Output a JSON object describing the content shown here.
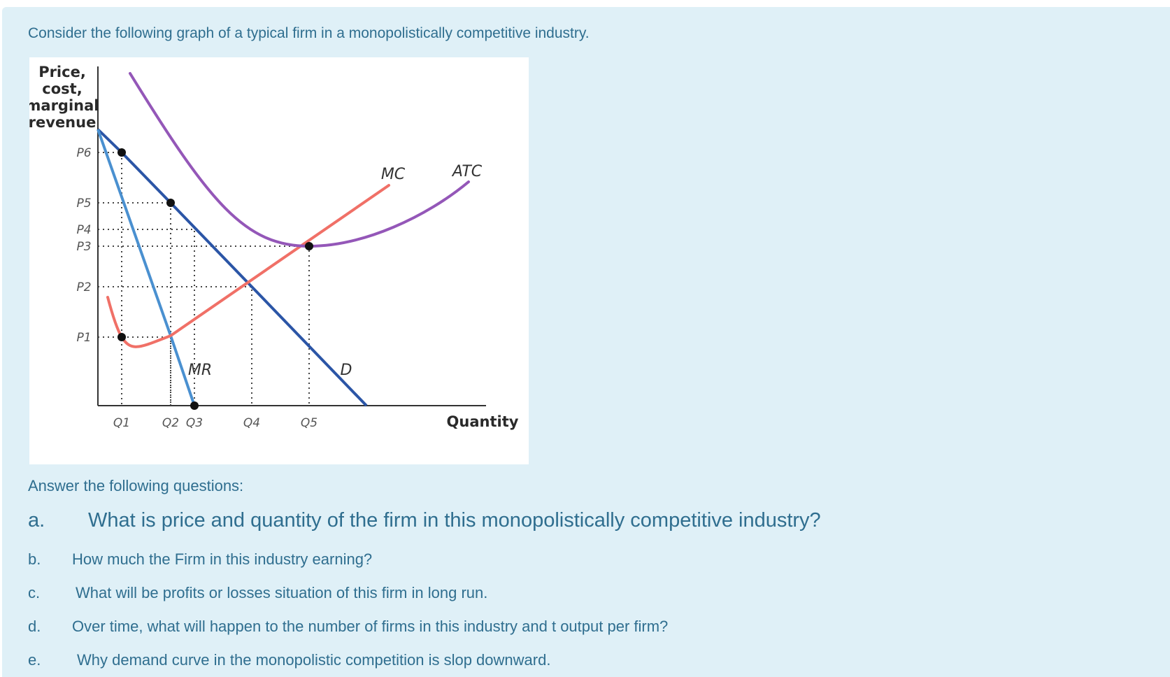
{
  "intro": "Consider the following graph of a typical firm in a monopolistically competitive industry.",
  "answer_title": "Answer the following questions:",
  "questions": [
    {
      "letter": "a.",
      "text": "What is price and quantity of the firm in this monopolistically competitive industry?"
    },
    {
      "letter": "b.",
      "text": "How much the Firm in this industry earning?"
    },
    {
      "letter": "c.",
      "text": "What will be profits or losses situation of this firm in long run."
    },
    {
      "letter": "d.",
      "text": "Over time, what will happen to the number of firms in this industry and t output per firm?"
    },
    {
      "letter": "e.",
      "text": "Why demand curve in the monopolistic competition is slop downward."
    }
  ],
  "colors": {
    "text": "#2f6e8f",
    "panel": "#dff0f7",
    "demand": "#2b55a6",
    "mr": "#4a90d0",
    "mc": "#f07067",
    "atc": "#9457b8"
  },
  "chart_data": {
    "type": "line",
    "ylabel_lines": [
      "Price,",
      "cost,",
      "marginal",
      "revenue"
    ],
    "xlabel": "Quantity",
    "x_ticks": [
      "Q1",
      "Q2",
      "Q3",
      "Q4",
      "Q5"
    ],
    "y_ticks": [
      "P1",
      "P2",
      "P3",
      "P4",
      "P5",
      "P6"
    ],
    "grid": false,
    "series": [
      {
        "name": "D",
        "points": [
          [
            0,
            6.6
          ],
          [
            1,
            6
          ],
          [
            2,
            5
          ],
          [
            4,
            3
          ],
          [
            7,
            0
          ]
        ]
      },
      {
        "name": "MR",
        "points": [
          [
            0,
            6.6
          ],
          [
            2,
            1
          ],
          [
            3,
            0
          ]
        ]
      },
      {
        "name": "MC",
        "points": [
          [
            0.5,
            1.6
          ],
          [
            1,
            1
          ],
          [
            2,
            1
          ],
          [
            4,
            2
          ],
          [
            7,
            4.4
          ]
        ]
      },
      {
        "name": "ATC",
        "points": [
          [
            1,
            7.5
          ],
          [
            5,
            3
          ],
          [
            8,
            4.3
          ]
        ]
      }
    ],
    "marked_points": [
      {
        "x": "Q1",
        "y": "P6"
      },
      {
        "x": "Q2",
        "y": "P5"
      },
      {
        "x": "Q5",
        "y": "P3"
      },
      {
        "x": "Q1",
        "y": "P1"
      },
      {
        "x": "Q3",
        "y": "0"
      }
    ]
  }
}
